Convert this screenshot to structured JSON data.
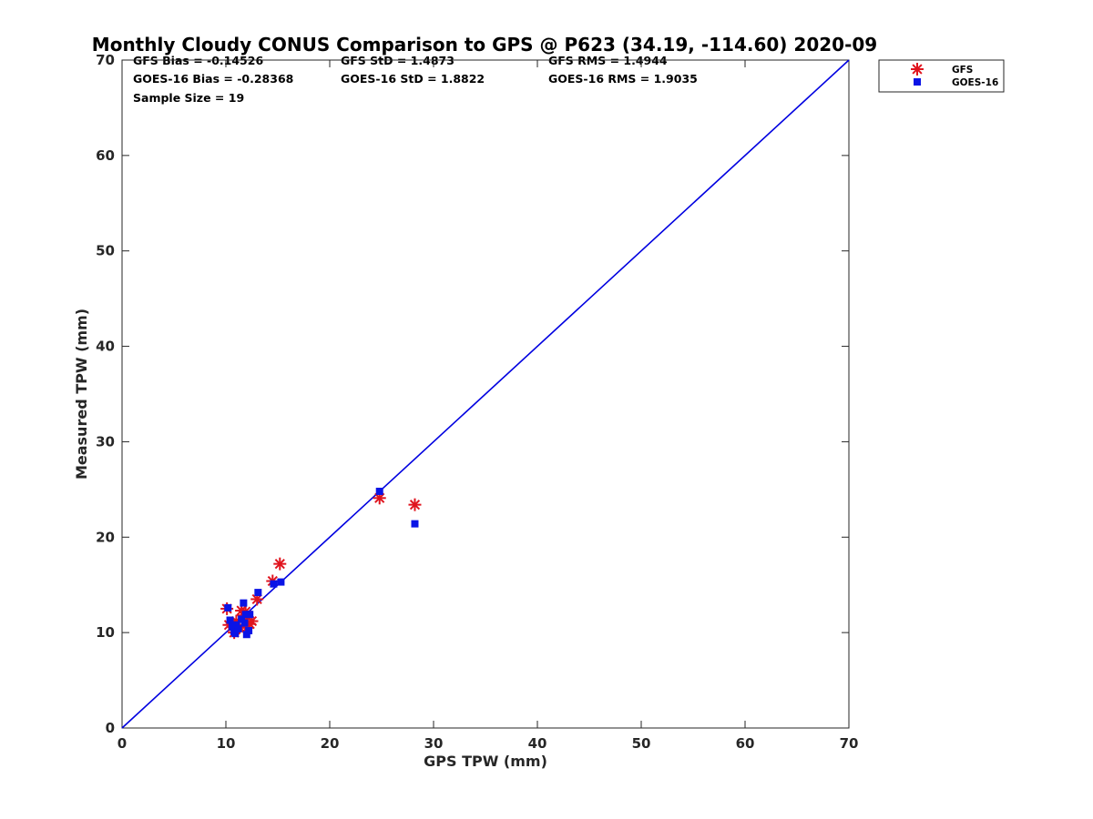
{
  "chart_data": {
    "type": "scatter",
    "title": "Monthly Cloudy CONUS Comparison to GPS @ P623 (34.19, -114.60) 2020-09",
    "xlabel": "GPS TPW (mm)",
    "ylabel": "Measured TPW (mm)",
    "xlim": [
      0,
      70
    ],
    "ylim": [
      0,
      70
    ],
    "xticks": [
      0,
      10,
      20,
      30,
      40,
      50,
      60,
      70
    ],
    "yticks": [
      0,
      10,
      20,
      30,
      40,
      50,
      60,
      70
    ],
    "xtick_labels": [
      "0",
      "10",
      "20",
      "30",
      "40",
      "50",
      "60",
      "70"
    ],
    "ytick_labels": [
      "0",
      "10",
      "20",
      "30",
      "40",
      "50",
      "60",
      "70"
    ],
    "grid": false,
    "legend_position": "top-right (outside plot area)",
    "stats": [
      [
        "GFS Bias = -0.14526",
        "GFS StD = 1.4873",
        "GFS RMS = 1.4944"
      ],
      [
        "GOES-16 Bias = -0.28368",
        "GOES-16 StD = 1.8822",
        "GOES-16 RMS = 1.9035"
      ],
      [
        "Sample Size = 19"
      ]
    ],
    "reference_line": {
      "x": [
        0,
        70
      ],
      "y": [
        0,
        70
      ],
      "color": "#0000e0"
    },
    "series": [
      {
        "name": "GFS",
        "marker": "asterisk",
        "color": "#e0141e",
        "points": [
          [
            10.1,
            12.5
          ],
          [
            10.3,
            10.8
          ],
          [
            10.6,
            11.0
          ],
          [
            10.8,
            10.0
          ],
          [
            11.0,
            11.2
          ],
          [
            11.3,
            10.6
          ],
          [
            11.5,
            12.3
          ],
          [
            11.7,
            11.8
          ],
          [
            11.9,
            12.2
          ],
          [
            12.1,
            11.6
          ],
          [
            12.3,
            10.9
          ],
          [
            12.5,
            11.2
          ],
          [
            12.0,
            10.5
          ],
          [
            13.0,
            13.5
          ],
          [
            14.5,
            15.4
          ],
          [
            15.2,
            17.2
          ],
          [
            24.8,
            24.1
          ],
          [
            28.2,
            23.4
          ],
          [
            10.9,
            10.3
          ]
        ]
      },
      {
        "name": "GOES-16",
        "marker": "square",
        "color": "#0a14e6",
        "points": [
          [
            10.2,
            12.6
          ],
          [
            10.4,
            11.3
          ],
          [
            10.6,
            10.6
          ],
          [
            10.8,
            10.1
          ],
          [
            11.0,
            10.8
          ],
          [
            11.2,
            10.4
          ],
          [
            11.5,
            11.4
          ],
          [
            11.7,
            13.1
          ],
          [
            11.9,
            11.9
          ],
          [
            12.0,
            9.8
          ],
          [
            12.2,
            10.2
          ],
          [
            12.3,
            11.9
          ],
          [
            11.8,
            11.0
          ],
          [
            13.1,
            14.2
          ],
          [
            14.6,
            15.1
          ],
          [
            15.3,
            15.3
          ],
          [
            24.8,
            24.8
          ],
          [
            28.2,
            21.4
          ],
          [
            10.9,
            9.9
          ]
        ]
      }
    ]
  }
}
